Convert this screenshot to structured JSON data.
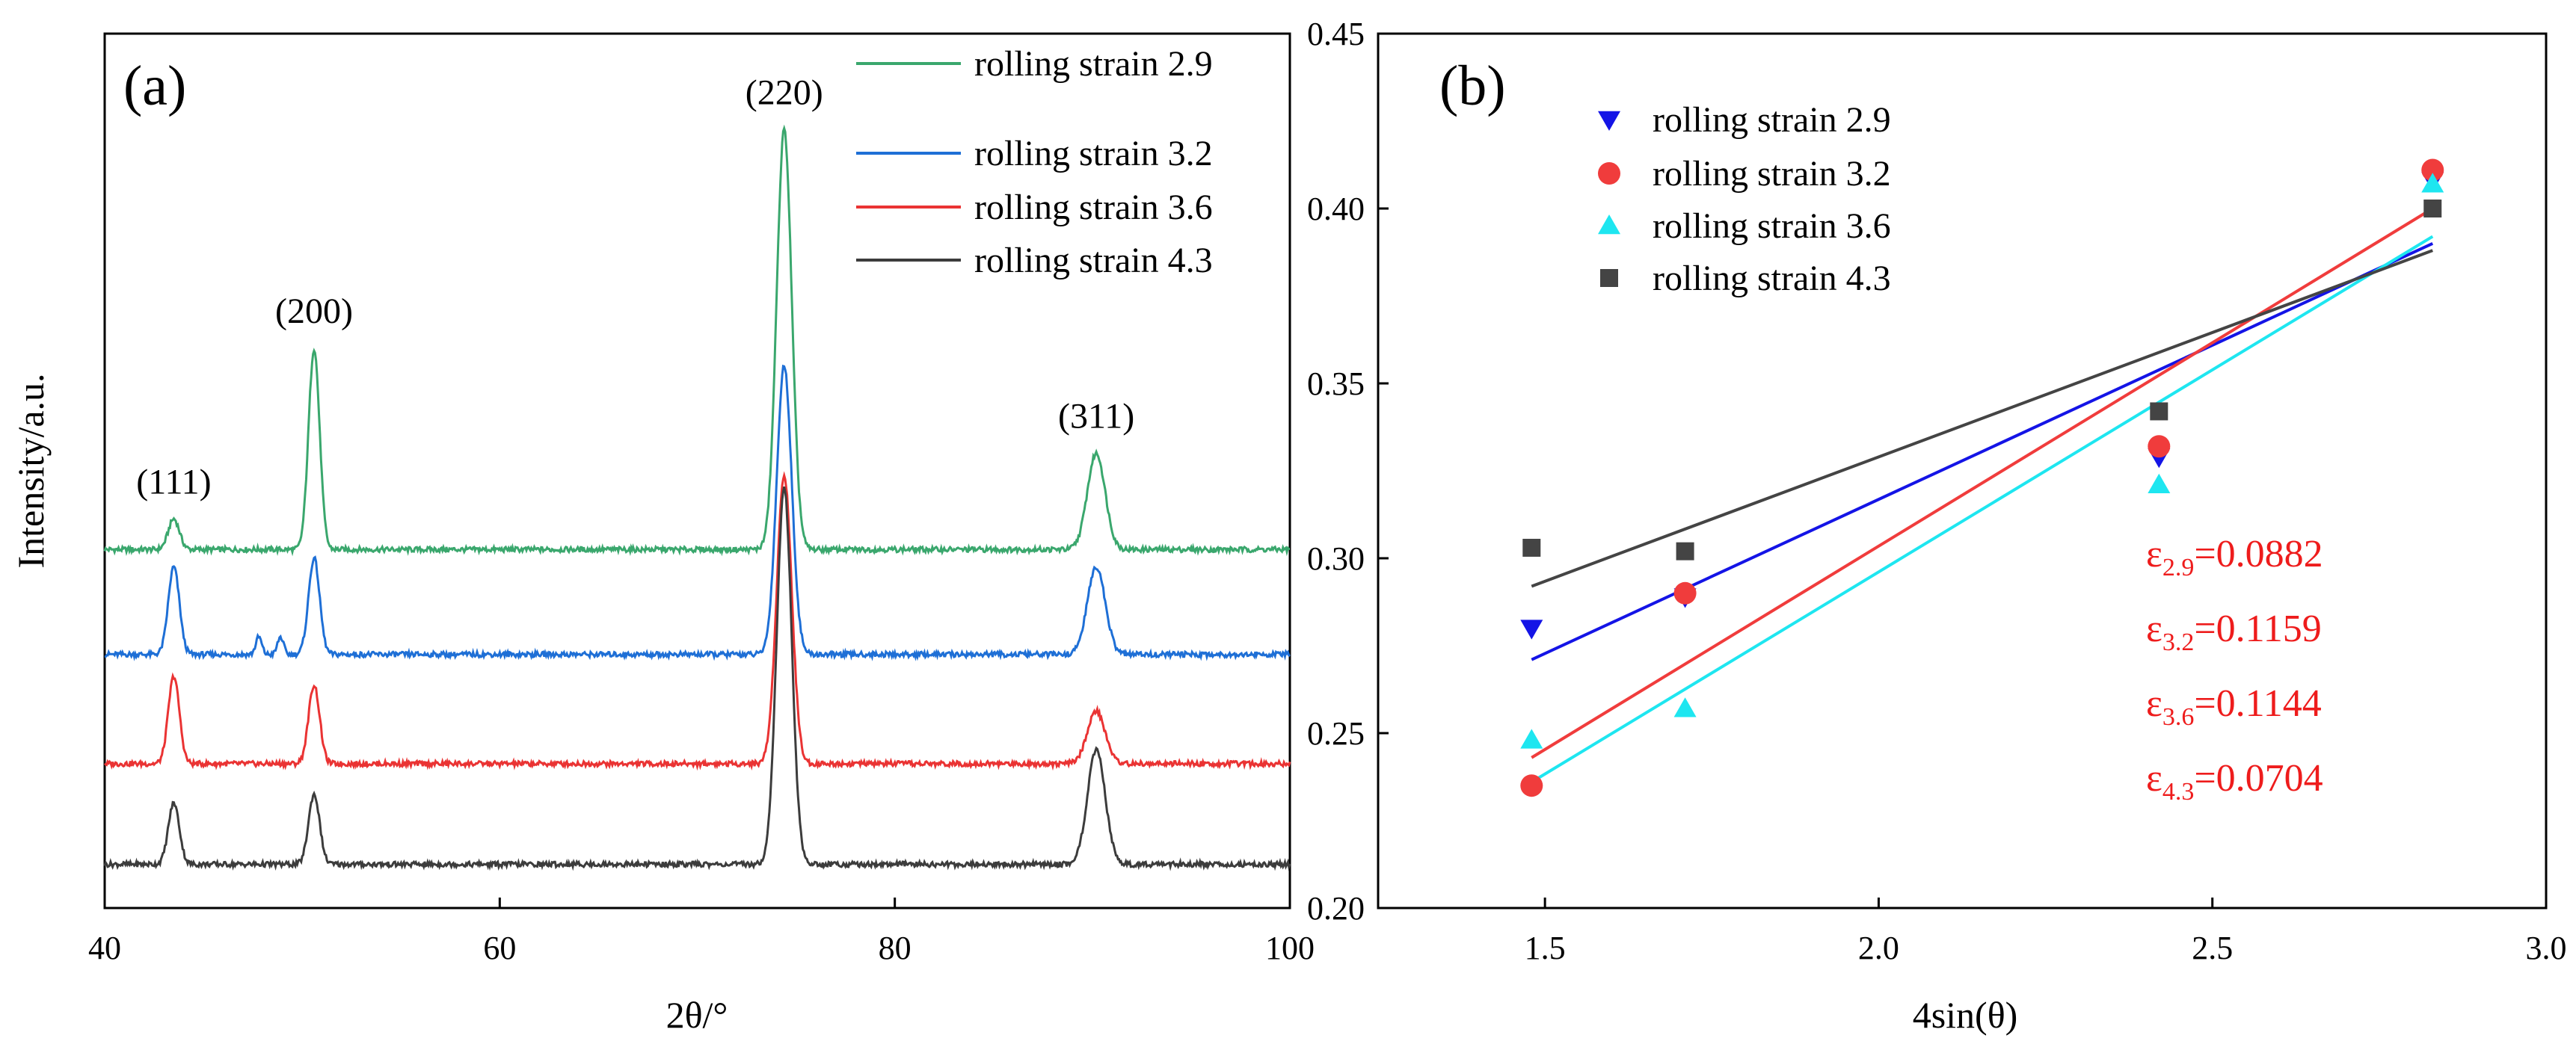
{
  "chart_data": [
    {
      "panel_label": "(a)",
      "type": "line",
      "xlabel": "2θ/°",
      "ylabel": "Intensity/a.u.",
      "xlim": [
        40,
        100
      ],
      "xticks": [
        "40",
        "60",
        "80",
        "100"
      ],
      "legend_position": "top-right",
      "peaks": [
        {
          "label": "(111)",
          "x": 43.5
        },
        {
          "label": "(200)",
          "x": 50.6
        },
        {
          "label": "(220)",
          "x": 74.4
        },
        {
          "label": "(311)",
          "x": 90.2
        }
      ],
      "series": [
        {
          "name": "rolling strain 2.9",
          "color": "#3aa76d",
          "baseline": 0.41,
          "peak_heights": [
            0.035,
            0.23,
            0.48,
            0.11
          ],
          "extra_peaks": []
        },
        {
          "name": "rolling strain 3.2",
          "color": "#1e6fd6",
          "baseline": 0.29,
          "peak_heights": [
            0.1,
            0.11,
            0.33,
            0.1
          ],
          "extra_peaks": [
            {
              "x": 47.8,
              "h": 0.02
            },
            {
              "x": 48.9,
              "h": 0.02
            }
          ]
        },
        {
          "name": "rolling strain 3.6",
          "color": "#ea3333",
          "baseline": 0.165,
          "peak_heights": [
            0.1,
            0.09,
            0.33,
            0.06
          ],
          "extra_peaks": []
        },
        {
          "name": "rolling strain 4.3",
          "color": "#3c3c3c",
          "baseline": 0.05,
          "peak_heights": [
            0.07,
            0.08,
            0.43,
            0.13
          ],
          "extra_peaks": []
        }
      ]
    },
    {
      "panel_label": "(b)",
      "type": "scatter",
      "xlabel": "4sin(θ)",
      "ylabel": "",
      "xlim": [
        1.25,
        3.0
      ],
      "ylim": [
        0.2,
        0.45
      ],
      "xticks": [
        "1.5",
        "2.0",
        "2.5",
        "3.0"
      ],
      "yticks": [
        "0.20",
        "0.25",
        "0.30",
        "0.35",
        "0.40",
        "0.45"
      ],
      "legend_position": "top-left",
      "series": [
        {
          "name": "rolling strain 2.9",
          "marker": "triangle-down",
          "color": "#1414e6",
          "points": [
            [
              1.48,
              0.28
            ],
            [
              1.71,
              0.289
            ],
            [
              2.42,
              0.329
            ],
            [
              2.83,
              0.408
            ]
          ],
          "fit": [
            [
              1.48,
              0.271
            ],
            [
              2.83,
              0.39
            ]
          ]
        },
        {
          "name": "rolling strain 3.2",
          "marker": "circle",
          "color": "#f03c3c",
          "points": [
            [
              1.48,
              0.235
            ],
            [
              1.71,
              0.29
            ],
            [
              2.42,
              0.332
            ],
            [
              2.83,
              0.411
            ]
          ],
          "fit": [
            [
              1.48,
              0.243
            ],
            [
              2.83,
              0.4
            ]
          ]
        },
        {
          "name": "rolling strain 3.6",
          "marker": "triangle-up",
          "color": "#1ee6f0",
          "points": [
            [
              1.48,
              0.248
            ],
            [
              1.71,
              0.257
            ],
            [
              2.42,
              0.321
            ],
            [
              2.83,
              0.407
            ]
          ],
          "fit": [
            [
              1.48,
              0.236
            ],
            [
              2.83,
              0.392
            ]
          ]
        },
        {
          "name": "rolling strain 4.3",
          "marker": "square",
          "color": "#444444",
          "points": [
            [
              1.48,
              0.303
            ],
            [
              1.71,
              0.302
            ],
            [
              2.42,
              0.342
            ],
            [
              2.83,
              0.4
            ]
          ],
          "fit": [
            [
              1.48,
              0.292
            ],
            [
              2.83,
              0.388
            ]
          ]
        }
      ],
      "annotations": [
        {
          "sym": "ε",
          "sub": "2.9",
          "value": "=0.0882"
        },
        {
          "sym": "ε",
          "sub": "3.2",
          "value": "=0.1159"
        },
        {
          "sym": "ε",
          "sub": "3.6",
          "value": "=0.1144"
        },
        {
          "sym": "ε",
          "sub": "4.3",
          "value": "=0.0704"
        }
      ],
      "annotation_color": "#ee1c1c"
    }
  ]
}
